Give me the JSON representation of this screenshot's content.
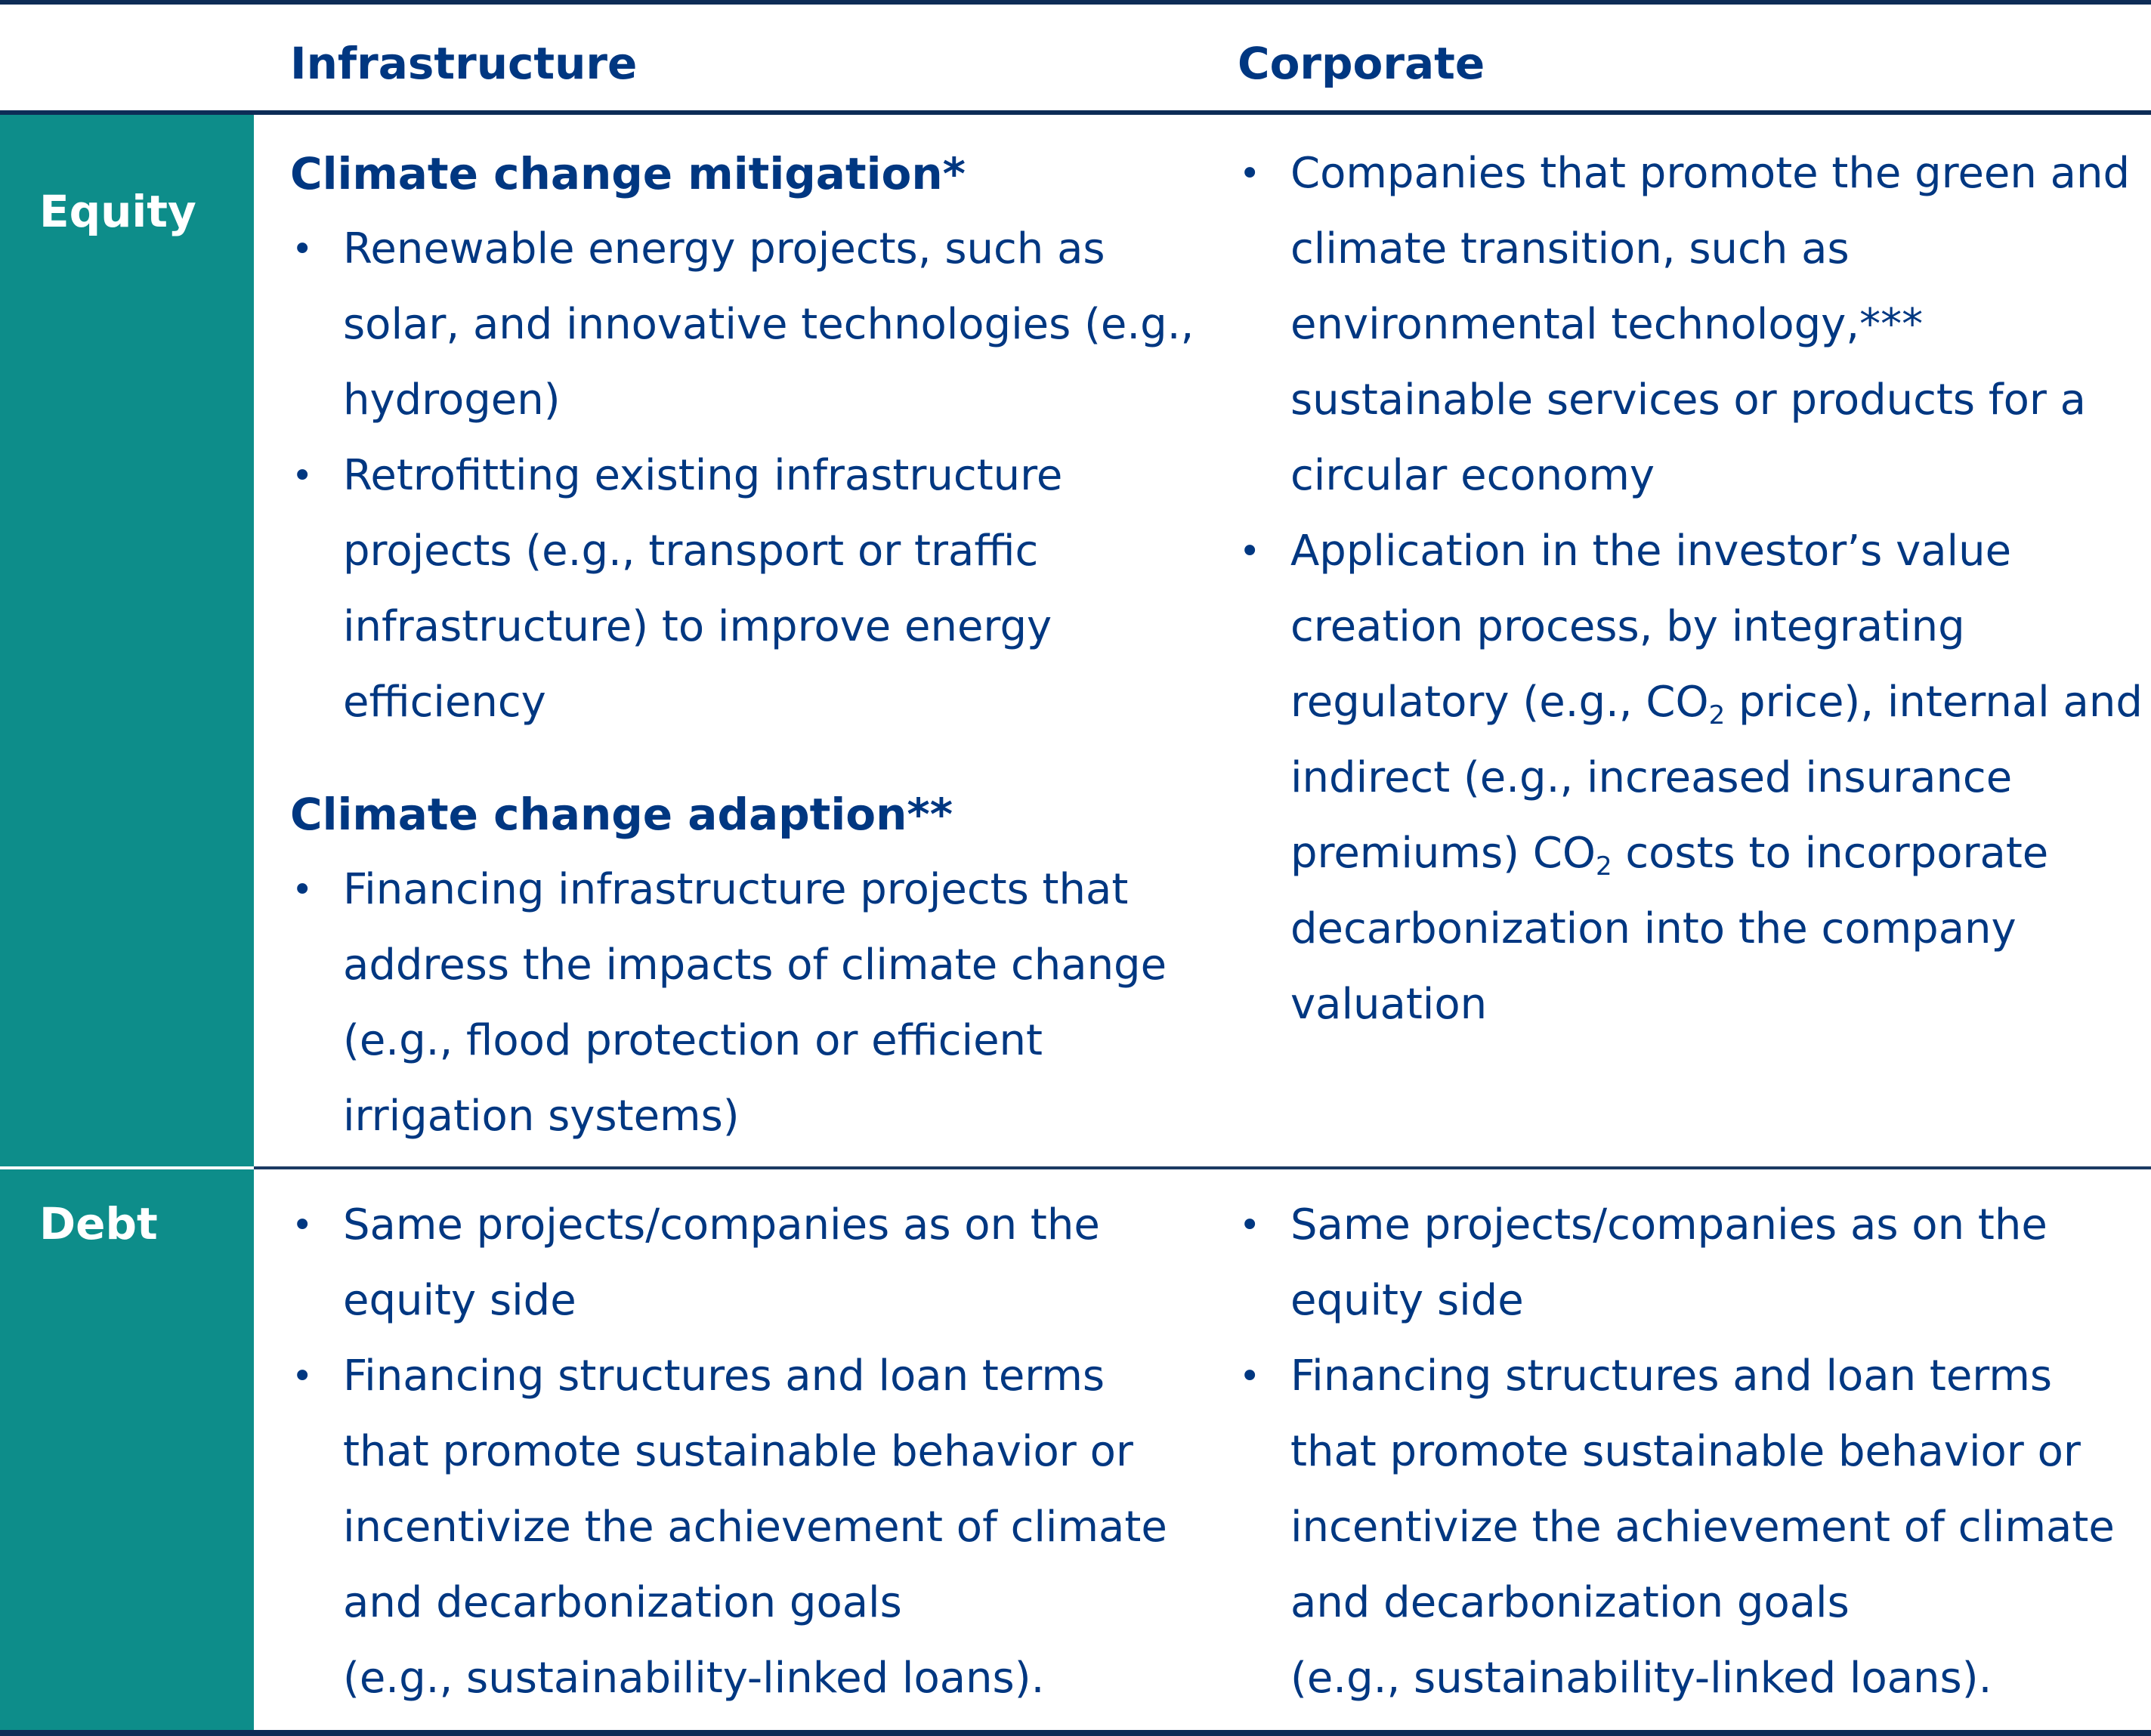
{
  "header": {
    "infrastructure": "Infrastructure",
    "corporate": "Corporate"
  },
  "rows": {
    "equity": "Equity",
    "debt": "Debt"
  },
  "equity": {
    "infrastructure": {
      "mitigation_heading": "Climate change mitigation*",
      "mitigation_items": [
        "Renewable energy projects, such as solar, and innovative technologies (e.g., hydrogen)",
        "Retrofitting existing infrastructure projects (e.g., transport or traffic infrastructure) to improve energy efficiency"
      ],
      "adaption_heading": "Climate change adaption**",
      "adaption_items": [
        "Financing infrastructure projects that address the impacts of climate change (e.g., flood protection or efficient irrigation systems)"
      ]
    },
    "corporate": {
      "item1": "Companies that promote the green and climate transition, such as environmental technology,*** sustainable services or products for a circular economy",
      "item2": {
        "part1": "Application in the investor’s value creation process, by integrating regulatory (e.g., CO",
        "sub1": "2",
        "part2": " price), internal and indirect (e.g., increased insurance premiums) CO",
        "sub2": "2",
        "part3": " costs to incorporate decarbonization into the company valuation"
      }
    }
  },
  "debt": {
    "infrastructure": {
      "item1": "Same projects/companies as on the equity side",
      "item2": "Financing structures and loan terms that promote sustainable behavior or incentivize the achievement of climate and decarbonization goals",
      "item2_cont": "(e.g., sustainability-linked loans)."
    },
    "corporate": {
      "item1": "Same projects/companies as on the equity side",
      "item2": "Financing structures and loan terms that promote sustainable behavior or incentivize the achievement of climate and decarbonization goals",
      "item2_cont": "(e.g., sustainability-linked loans)."
    }
  },
  "bullet": "•",
  "colors": {
    "text": "#003781",
    "accent_teal": "#0d8d8a",
    "rule": "#0d2c56"
  }
}
